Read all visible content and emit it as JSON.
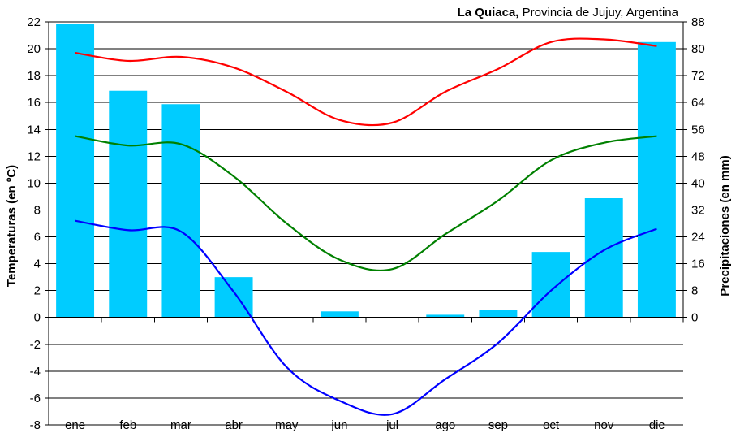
{
  "chart_data": {
    "type": "bar+line",
    "title_bold": "La Quiaca,",
    "title_rest": " Provincia de Jujuy, Argentina",
    "categories": [
      "ene",
      "feb",
      "mar",
      "abr",
      "may",
      "jun",
      "jul",
      "ago",
      "sep",
      "oct",
      "nov",
      "dic"
    ],
    "left_axis": {
      "label": "Temperaturas (en ºC)",
      "min": -8,
      "max": 22,
      "step": 2,
      "ticks": [
        "22",
        "20",
        "18",
        "16",
        "14",
        "12",
        "10",
        "8",
        "6",
        "4",
        "2",
        "0",
        "-2",
        "-4",
        "-6",
        "-8"
      ]
    },
    "right_axis": {
      "label": "Precipitaciones (en mm)",
      "min": 0,
      "max": 88,
      "step": 8,
      "ticks": [
        "88",
        "80",
        "72",
        "64",
        "56",
        "48",
        "40",
        "32",
        "24",
        "16",
        "8",
        "0"
      ]
    },
    "precipitation": [
      87.5,
      67.5,
      63.5,
      12,
      0,
      1.8,
      0,
      0.8,
      2.3,
      19.5,
      35.5,
      82
    ],
    "series": [
      {
        "key": "max",
        "color": "#ff0000",
        "values": [
          19.7,
          19.1,
          19.4,
          18.6,
          16.8,
          14.7,
          14.5,
          16.8,
          18.5,
          20.5,
          20.7,
          20.2
        ]
      },
      {
        "key": "mean",
        "color": "#008000",
        "values": [
          13.5,
          12.8,
          12.9,
          10.5,
          7.0,
          4.3,
          3.6,
          6.2,
          8.7,
          11.7,
          13.0,
          13.5
        ]
      },
      {
        "key": "min",
        "color": "#0000ff",
        "values": [
          7.2,
          6.5,
          6.4,
          1.9,
          -3.7,
          -6.2,
          -7.2,
          -4.6,
          -1.9,
          2.0,
          5.0,
          6.6
        ]
      }
    ],
    "bar_color": "#00ccff",
    "grid": true
  }
}
